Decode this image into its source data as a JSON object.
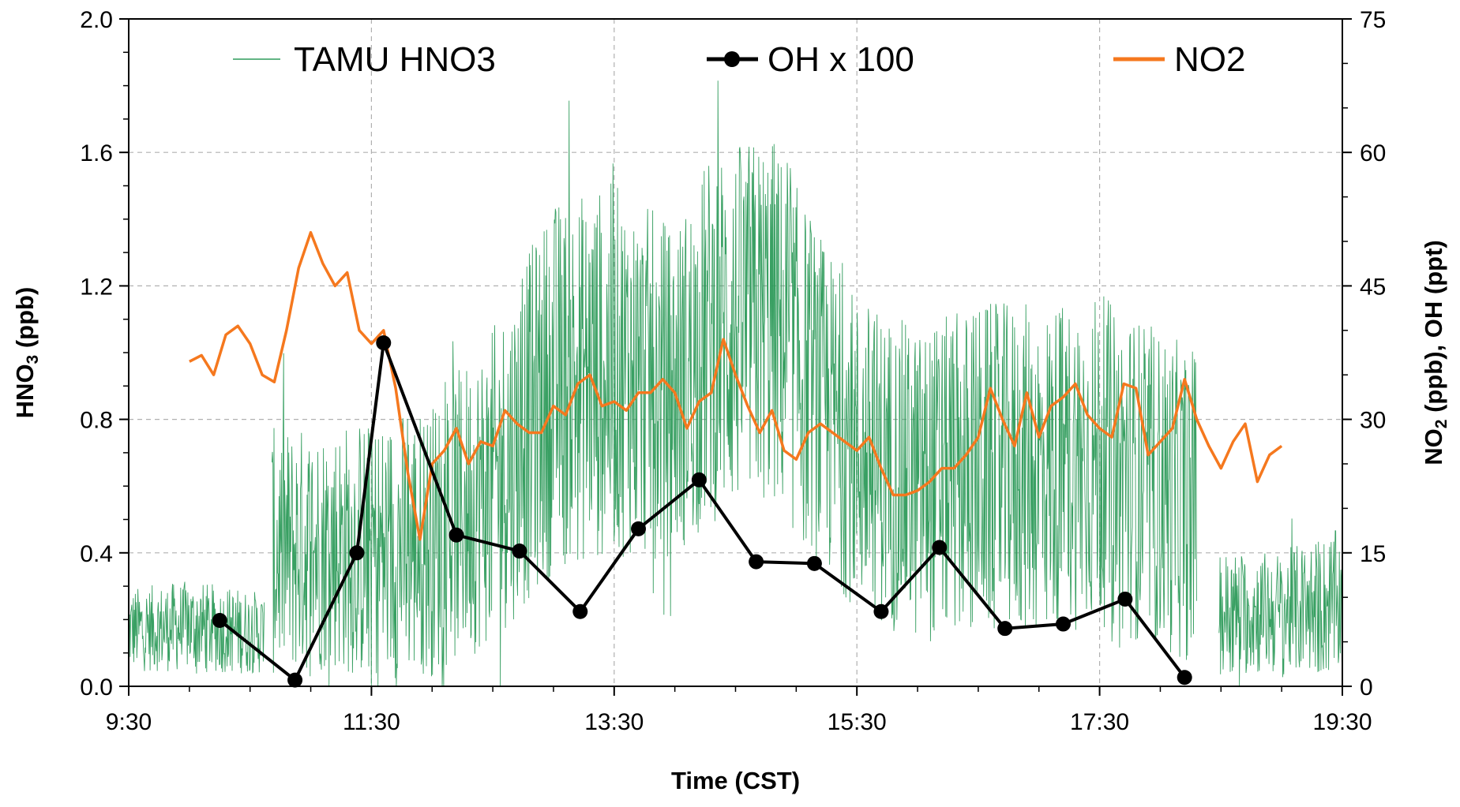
{
  "chart_data": {
    "type": "line",
    "title": "",
    "xlabel": "Time (CST)",
    "ylabel_left_main": "HNO",
    "ylabel_left_sub": "3",
    "ylabel_left_rest": " (ppb)",
    "ylabel_right_main": "NO",
    "ylabel_right_sub": "2",
    "ylabel_right_rest": " (ppb), OH (ppt)",
    "x_range_hours": [
      9.5,
      19.5
    ],
    "x_ticks": [
      "9:30",
      "11:30",
      "13:30",
      "15:30",
      "17:30",
      "19:30"
    ],
    "x_tick_values_hours": [
      9.5,
      11.5,
      13.5,
      15.5,
      17.5,
      19.5
    ],
    "ylim_left": [
      0,
      2.0
    ],
    "yticks_left": [
      "0.0",
      "0.4",
      "0.8",
      "1.2",
      "1.6",
      "2.0"
    ],
    "yticks_left_values": [
      0,
      0.4,
      0.8,
      1.2,
      1.6,
      2.0
    ],
    "ylim_right": [
      0,
      75
    ],
    "yticks_right": [
      "0",
      "15",
      "30",
      "45",
      "60",
      "75"
    ],
    "yticks_right_values": [
      0,
      15,
      30,
      45,
      60,
      75
    ],
    "grid": "dashed vertical and horizontal at major ticks",
    "legend": "top, horizontal, inside plot",
    "series": [
      {
        "name": "TAMU HNO3",
        "axis": "left",
        "color": "#2E9B5B",
        "style": "thin noisy line",
        "envelope": [
          {
            "t": 9.5,
            "mean": 0.17,
            "amp": 0.1
          },
          {
            "t": 10.0,
            "mean": 0.18,
            "amp": 0.11
          },
          {
            "t": 10.6,
            "mean": 0.16,
            "amp": 0.1
          },
          {
            "t": 10.68,
            "mean": 0.4,
            "amp": 0.3
          },
          {
            "t": 11.2,
            "mean": 0.42,
            "amp": 0.3
          },
          {
            "t": 11.6,
            "mean": 0.4,
            "amp": 0.33
          },
          {
            "t": 12.0,
            "mean": 0.44,
            "amp": 0.33
          },
          {
            "t": 12.5,
            "mean": 0.6,
            "amp": 0.38
          },
          {
            "t": 13.0,
            "mean": 0.9,
            "amp": 0.45
          },
          {
            "t": 13.5,
            "mean": 0.95,
            "amp": 0.45
          },
          {
            "t": 14.0,
            "mean": 0.88,
            "amp": 0.4
          },
          {
            "t": 14.3,
            "mean": 1.05,
            "amp": 0.45
          },
          {
            "t": 14.8,
            "mean": 1.1,
            "amp": 0.45
          },
          {
            "t": 15.2,
            "mean": 0.85,
            "amp": 0.4
          },
          {
            "t": 15.5,
            "mean": 0.7,
            "amp": 0.38
          },
          {
            "t": 16.0,
            "mean": 0.6,
            "amp": 0.38
          },
          {
            "t": 16.5,
            "mean": 0.65,
            "amp": 0.4
          },
          {
            "t": 17.0,
            "mean": 0.65,
            "amp": 0.4
          },
          {
            "t": 17.5,
            "mean": 0.68,
            "amp": 0.4
          },
          {
            "t": 18.2,
            "mean": 0.55,
            "amp": 0.38
          },
          {
            "t": 18.3,
            "mean": 0.55,
            "amp": 0.38
          },
          {
            "t": 18.5,
            "mean": 0.22,
            "amp": 0.15
          },
          {
            "t": 19.0,
            "mean": 0.22,
            "amp": 0.15
          },
          {
            "t": 19.5,
            "mean": 0.25,
            "amp": 0.18
          }
        ],
        "gaps": [
          [
            10.62,
            10.68
          ],
          [
            18.3,
            18.48
          ]
        ]
      },
      {
        "name": "OH x 100",
        "axis": "right",
        "color": "#000000",
        "style": "line with circle markers",
        "x_hours": [
          10.25,
          10.87,
          11.38,
          11.6,
          12.2,
          12.72,
          13.22,
          13.7,
          14.2,
          14.67,
          15.15,
          15.7,
          16.18,
          16.72,
          17.2,
          17.71,
          18.2
        ],
        "y": [
          7.4,
          0.7,
          15.0,
          38.6,
          17.0,
          15.2,
          8.4,
          17.7,
          23.2,
          14.0,
          13.8,
          8.4,
          15.6,
          6.5,
          7.0,
          9.8,
          1.0
        ]
      },
      {
        "name": "NO2",
        "axis": "right",
        "color": "#F5781E",
        "style": "line",
        "x_hours": [
          10.0,
          10.1,
          10.2,
          10.3,
          10.4,
          10.5,
          10.6,
          10.7,
          10.8,
          10.9,
          11.0,
          11.1,
          11.2,
          11.3,
          11.4,
          11.5,
          11.6,
          11.7,
          11.8,
          11.9,
          12.0,
          12.1,
          12.2,
          12.3,
          12.4,
          12.5,
          12.6,
          12.7,
          12.8,
          12.9,
          13.0,
          13.1,
          13.2,
          13.3,
          13.4,
          13.5,
          13.6,
          13.7,
          13.8,
          13.9,
          14.0,
          14.1,
          14.2,
          14.3,
          14.4,
          14.5,
          14.6,
          14.7,
          14.8,
          14.9,
          15.0,
          15.1,
          15.2,
          15.3,
          15.4,
          15.5,
          15.6,
          15.7,
          15.8,
          15.9,
          16.0,
          16.1,
          16.2,
          16.3,
          16.4,
          16.5,
          16.6,
          16.7,
          16.8,
          16.9,
          17.0,
          17.1,
          17.2,
          17.3,
          17.4,
          17.5,
          17.6,
          17.7,
          17.8,
          17.9,
          18.0,
          18.1,
          18.2,
          18.3,
          18.4,
          18.5,
          18.6,
          18.7,
          18.8,
          18.9,
          19.0
        ],
        "y": [
          36.5,
          37.2,
          35.0,
          39.5,
          40.5,
          38.5,
          35.0,
          34.2,
          40.0,
          47.0,
          51.0,
          47.5,
          45.0,
          46.5,
          40.0,
          38.5,
          40.0,
          33.5,
          24.0,
          16.5,
          25.0,
          26.5,
          29.0,
          25.0,
          27.5,
          27.0,
          31.0,
          29.5,
          28.5,
          28.5,
          31.5,
          30.5,
          34.0,
          35.0,
          31.5,
          32.0,
          31.0,
          33.0,
          33.0,
          34.5,
          33.0,
          29.0,
          32.0,
          33.0,
          39.0,
          35.0,
          31.5,
          28.5,
          31.0,
          26.5,
          25.5,
          28.5,
          29.5,
          28.5,
          27.5,
          26.5,
          28.0,
          24.5,
          21.5,
          21.5,
          22.0,
          23.0,
          24.5,
          24.5,
          26.0,
          28.0,
          33.5,
          30.0,
          27.0,
          33.0,
          28.0,
          31.5,
          32.5,
          34.0,
          30.5,
          29.0,
          28.0,
          34.0,
          33.5,
          26.0,
          27.5,
          29.0,
          34.5,
          30.0,
          27.0,
          24.5,
          27.5,
          29.5,
          23.0,
          26.0,
          27.0
        ]
      }
    ]
  }
}
